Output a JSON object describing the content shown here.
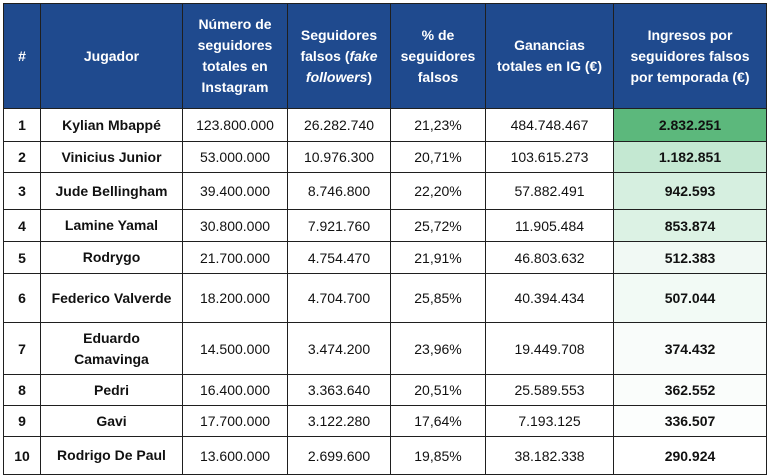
{
  "table": {
    "headers": {
      "rank": "#",
      "player": "Jugador",
      "followers": "Número de seguidores totales en Instagram",
      "fake_pre": "Seguidores falsos (",
      "fake_italic": "fake followers",
      "fake_post": ")",
      "fake_pct": "% de seguidores falsos",
      "earnings": "Ganancias totales en IG (€)",
      "income": "Ingresos por seguidores falsos por temporada (€)"
    },
    "rows": [
      {
        "rank": "1",
        "player": "Kylian Mbappé",
        "followers": "123.800.000",
        "fake": "26.282.740",
        "pct": "21,23%",
        "earnings": "484.748.467",
        "income": "2.832.251",
        "color": "#5cb87c"
      },
      {
        "rank": "2",
        "player": "Vinicius Junior",
        "followers": "53.000.000",
        "fake": "10.976.300",
        "pct": "20,71%",
        "earnings": "103.615.273",
        "income": "1.182.851",
        "color": "#c4e8d2"
      },
      {
        "rank": "3",
        "player": "Jude Bellingham",
        "followers": "39.400.000",
        "fake": "8.746.800",
        "pct": "22,20%",
        "earnings": "57.882.491",
        "income": "942.593",
        "color": "#d6efe0"
      },
      {
        "rank": "4",
        "player": "Lamine Yamal",
        "followers": "30.800.000",
        "fake": "7.921.760",
        "pct": "25,72%",
        "earnings": "11.905.484",
        "income": "853.874",
        "color": "#dcf2e4"
      },
      {
        "rank": "5",
        "player": "Rodrygo",
        "followers": "21.700.000",
        "fake": "4.754.470",
        "pct": "21,91%",
        "earnings": "46.803.632",
        "income": "512.383",
        "color": "#f1f9f4"
      },
      {
        "rank": "6",
        "player": "Federico Valverde",
        "followers": "18.200.000",
        "fake": "4.704.700",
        "pct": "25,85%",
        "earnings": "40.394.434",
        "income": "507.044",
        "color": "#f2faf5"
      },
      {
        "rank": "7",
        "player": "Eduardo Camavinga",
        "followers": "14.500.000",
        "fake": "3.474.200",
        "pct": "23,96%",
        "earnings": "19.449.708",
        "income": "374.432",
        "color": "#f9fcfa"
      },
      {
        "rank": "8",
        "player": "Pedri",
        "followers": "16.400.000",
        "fake": "3.363.640",
        "pct": "20,51%",
        "earnings": "25.589.553",
        "income": "362.552",
        "color": "#fafdfb"
      },
      {
        "rank": "9",
        "player": "Gavi",
        "followers": "17.700.000",
        "fake": "3.122.280",
        "pct": "17,64%",
        "earnings": "7.193.125",
        "income": "336.507",
        "color": "#fcfefd"
      },
      {
        "rank": "10",
        "player": "Rodrigo De Paul",
        "followers": "13.600.000",
        "fake": "2.699.600",
        "pct": "19,85%",
        "earnings": "38.182.338",
        "income": "290.924",
        "color": "#ffffff"
      }
    ]
  },
  "colors": {
    "header_bg": "#1f4a8e",
    "header_text": "#ffffff",
    "border": "#1f1f1f"
  }
}
